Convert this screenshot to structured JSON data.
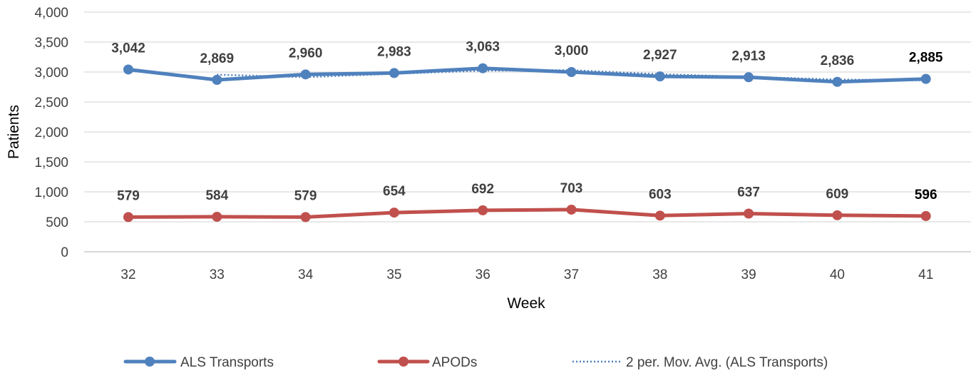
{
  "chart_data": {
    "type": "line",
    "xlabel": "Week",
    "ylabel": "Patients",
    "ylim": [
      0,
      4000
    ],
    "yticks": [
      0,
      500,
      1000,
      1500,
      2000,
      2500,
      3000,
      3500,
      4000
    ],
    "ytick_labels": [
      "0",
      "500",
      "1,000",
      "1,500",
      "2,000",
      "2,500",
      "3,000",
      "3,500",
      "4,000"
    ],
    "categories": [
      "32",
      "33",
      "34",
      "35",
      "36",
      "37",
      "38",
      "39",
      "40",
      "41"
    ],
    "grid": true,
    "legend_position": "bottom",
    "series": [
      {
        "name": "ALS Transports",
        "color": "#4f81bd",
        "values": [
          3042,
          2869,
          2960,
          2983,
          3063,
          3000,
          2927,
          2913,
          2836,
          2885
        ],
        "labels": [
          "3,042",
          "2,869",
          "2,960",
          "2,983",
          "3,063",
          "3,000",
          "2,927",
          "2,913",
          "2,836",
          "2,885"
        ]
      },
      {
        "name": "APODs",
        "color": "#c0504d",
        "values": [
          579,
          584,
          579,
          654,
          692,
          703,
          603,
          637,
          609,
          596
        ],
        "labels": [
          "579",
          "584",
          "579",
          "654",
          "692",
          "703",
          "603",
          "637",
          "609",
          "596"
        ]
      }
    ],
    "trendline": {
      "name": "2 per. Mov. Avg. (ALS Transports)",
      "color": "#4f81bd",
      "period": 2,
      "style": "dotted"
    }
  }
}
